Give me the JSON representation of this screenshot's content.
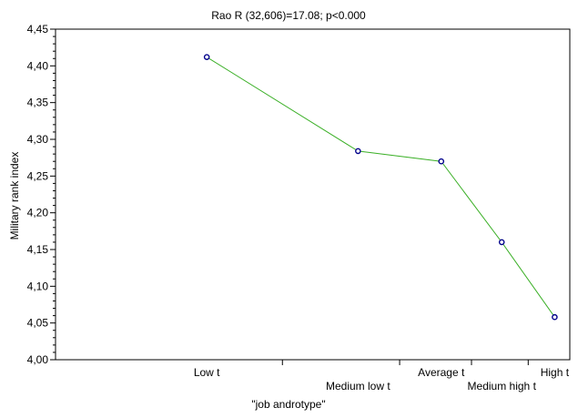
{
  "chart_data": {
    "type": "line",
    "title": "Rao R (32,606)=17.08;  p<0.000",
    "xlabel": "\"job androtype\"",
    "ylabel": "Military rank index",
    "categories": [
      "Low t",
      "Medium low t",
      "Average t",
      "Medium high t",
      "High t"
    ],
    "x": [
      1.0,
      2.0,
      2.55,
      2.95,
      3.3
    ],
    "values": [
      4.412,
      4.284,
      4.27,
      4.16,
      4.058
    ],
    "ylim": [
      4.0,
      4.45
    ],
    "yticks": [
      "4,00",
      "4,05",
      "4,10",
      "4,15",
      "4,20",
      "4,25",
      "4,30",
      "4,35",
      "4,40",
      "4,45"
    ],
    "xlim": [
      0.0,
      3.4
    ],
    "grid": false,
    "colors": {
      "line": "#3cb028",
      "marker": "#00008b"
    }
  }
}
